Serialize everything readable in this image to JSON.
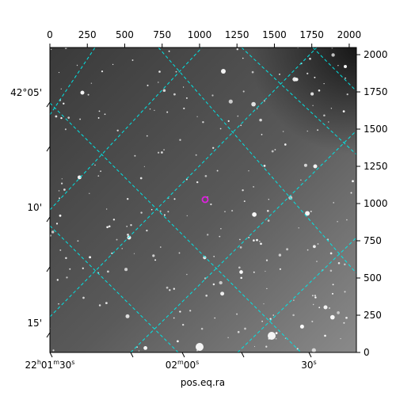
{
  "figure": {
    "xlabel": "pos.eq.ra",
    "pixel_x_ticks": [
      "0",
      "250",
      "500",
      "750",
      "1000",
      "1250",
      "1500",
      "1750",
      "2000"
    ],
    "pixel_y_ticks": [
      "0",
      "250",
      "500",
      "750",
      "1000",
      "1250",
      "1500",
      "1750",
      "2000"
    ],
    "ra_ticks": [
      {
        "main": "22",
        "sup1": "h",
        "mid": "01",
        "sup2": "m",
        "end": "30",
        "sup3": "s"
      },
      {
        "main": "",
        "sup1": "",
        "mid": "02",
        "sup2": "m",
        "end": "00",
        "sup3": "s"
      },
      {
        "main": "",
        "sup1": "",
        "mid": "",
        "sup2": "",
        "end": "30",
        "sup3": "s"
      }
    ],
    "dec_ticks": [
      "42°05'",
      "10'",
      "15'"
    ],
    "grid_color": "#00e5e5",
    "marker_color": "#e020e0"
  }
}
